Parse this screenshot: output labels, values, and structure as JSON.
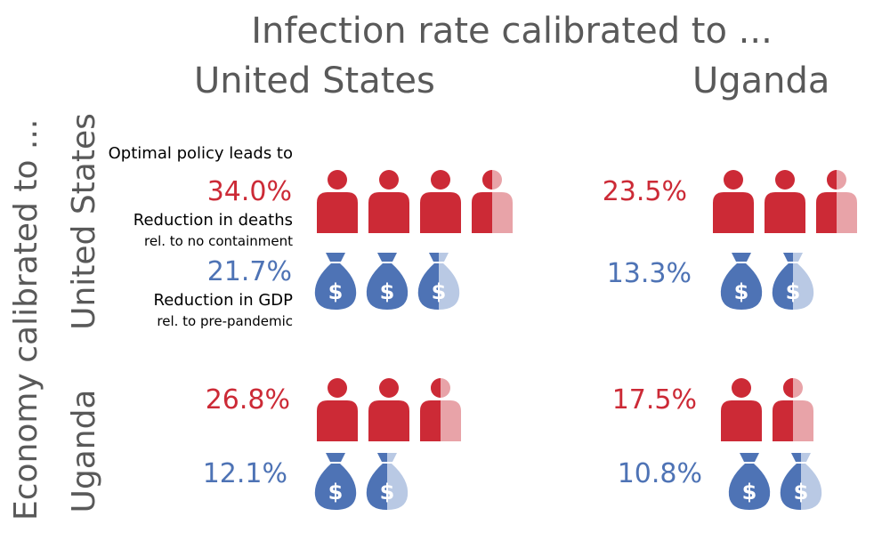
{
  "title": "Infection rate calibrated to ...",
  "columns": [
    "United States",
    "Uganda"
  ],
  "row_axis_label": "Economy calibrated to ...",
  "rows": [
    "United States",
    "Uganda"
  ],
  "legend": {
    "intro": "Optimal policy leads to",
    "deaths_line1": "Reduction in deaths",
    "deaths_line2": "rel. to no containment",
    "gdp_line1": "Reduction in GDP",
    "gdp_line2": "rel. to pre-pandemic"
  },
  "colors": {
    "deaths": "#cc2a36",
    "deaths_light": "#e8a3a8",
    "gdp": "#4e73b5",
    "gdp_light": "#b9c9e4",
    "text": "#595959"
  },
  "icons": {
    "deaths": "person-icon",
    "gdp": "money-bag-icon"
  },
  "chart_data": {
    "type": "table",
    "title": "Infection rate calibrated to ...",
    "x_categories": [
      "United States",
      "Uganda"
    ],
    "y_label": "Economy calibrated to ...",
    "y_categories": [
      "United States",
      "Uganda"
    ],
    "cells": [
      {
        "economy": "United States",
        "infection": "United States",
        "deaths_reduction": "34.0%",
        "gdp_reduction": "21.7%",
        "deaths_value": 34.0,
        "gdp_value": 21.7,
        "person_icons": 3.5,
        "bag_icons": 2.5
      },
      {
        "economy": "United States",
        "infection": "Uganda",
        "deaths_reduction": "23.5%",
        "gdp_reduction": "13.3%",
        "deaths_value": 23.5,
        "gdp_value": 13.3,
        "person_icons": 2.5,
        "bag_icons": 1.5
      },
      {
        "economy": "Uganda",
        "infection": "United States",
        "deaths_reduction": "26.8%",
        "gdp_reduction": "12.1%",
        "deaths_value": 26.8,
        "gdp_value": 12.1,
        "person_icons": 2.5,
        "bag_icons": 1.5
      },
      {
        "economy": "Uganda",
        "infection": "Uganda",
        "deaths_reduction": "17.5%",
        "gdp_reduction": "10.8%",
        "deaths_value": 17.5,
        "gdp_value": 10.8,
        "person_icons": 1.5,
        "bag_icons": 1.5
      }
    ]
  }
}
